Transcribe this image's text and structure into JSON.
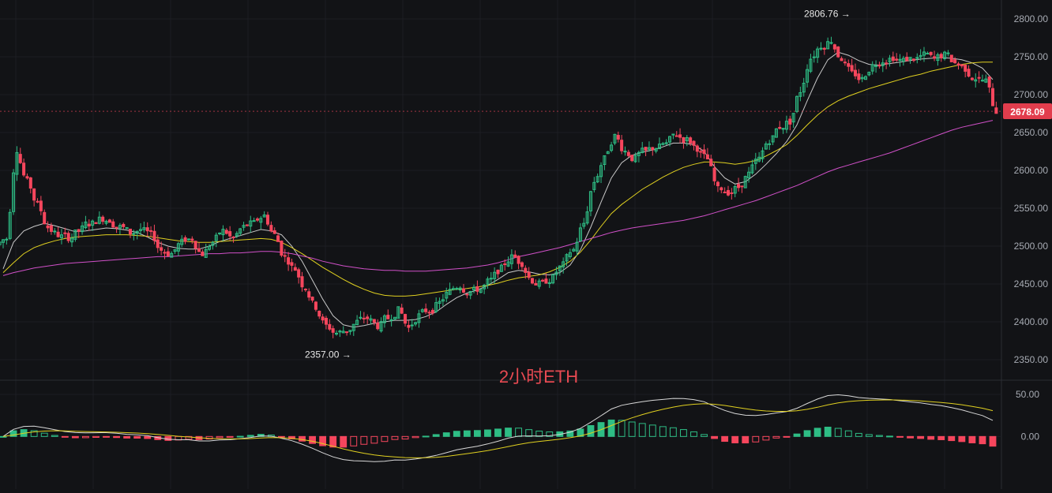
{
  "chart_data": [
    {
      "type": "candlestick",
      "title": "",
      "ylim": [
        2325,
        2825
      ],
      "y_ticks": [
        "2800.00",
        "2750.00",
        "2700.00",
        "2650.00",
        "2600.00",
        "2550.00",
        "2500.00",
        "2450.00",
        "2400.00",
        "2350.00"
      ],
      "last_price_label": "2678.09",
      "watermark": "2小时ETH",
      "annotations": [
        {
          "text": "2806.76 →",
          "value": 2806.76
        },
        {
          "text": "2357.00 →",
          "value": 2357.0
        }
      ],
      "close_series": [
        2510,
        2628,
        2585,
        2555,
        2525,
        2515,
        2512,
        2520,
        2530,
        2535,
        2535,
        2525,
        2518,
        2522,
        2515,
        2495,
        2490,
        2505,
        2510,
        2490,
        2505,
        2520,
        2510,
        2525,
        2530,
        2540,
        2515,
        2485,
        2470,
        2445,
        2420,
        2395,
        2385,
        2388,
        2400,
        2405,
        2395,
        2405,
        2415,
        2392,
        2408,
        2415,
        2425,
        2440,
        2448,
        2440,
        2443,
        2455,
        2470,
        2485,
        2478,
        2455,
        2450,
        2458,
        2475,
        2495,
        2530,
        2585,
        2615,
        2645,
        2625,
        2615,
        2625,
        2630,
        2635,
        2648,
        2640,
        2630,
        2615,
        2575,
        2572,
        2578,
        2595,
        2615,
        2640,
        2658,
        2665,
        2705,
        2748,
        2765,
        2772,
        2748,
        2728,
        2720,
        2738,
        2745,
        2750,
        2745,
        2748,
        2752,
        2747,
        2752,
        2742,
        2735,
        2722,
        2718,
        2678
      ],
      "ma_series": [
        {
          "color": "#c8c8c8",
          "values": [
            2470,
            2505,
            2520,
            2526,
            2530,
            2527,
            2523,
            2519,
            2520,
            2522,
            2524,
            2523,
            2521,
            2518,
            2512,
            2505,
            2500,
            2497,
            2496,
            2496,
            2500,
            2506,
            2510,
            2514,
            2518,
            2522,
            2520,
            2515,
            2500,
            2480,
            2455,
            2430,
            2408,
            2396,
            2393,
            2395,
            2398,
            2400,
            2402,
            2402,
            2403,
            2407,
            2413,
            2423,
            2432,
            2438,
            2442,
            2448,
            2456,
            2465,
            2468,
            2466,
            2463,
            2462,
            2465,
            2475,
            2495,
            2525,
            2558,
            2590,
            2610,
            2620,
            2624,
            2627,
            2631,
            2636,
            2636,
            2634,
            2625,
            2605,
            2590,
            2582,
            2585,
            2595,
            2608,
            2622,
            2638,
            2660,
            2692,
            2722,
            2746,
            2756,
            2752,
            2745,
            2740,
            2739,
            2741,
            2743,
            2745,
            2747,
            2748,
            2749,
            2748,
            2746,
            2742,
            2735,
            2720
          ]
        },
        {
          "color": "#e0d020",
          "values": [
            2465,
            2478,
            2490,
            2498,
            2503,
            2507,
            2510,
            2512,
            2513,
            2514,
            2515,
            2515,
            2515,
            2514,
            2513,
            2511,
            2509,
            2507,
            2506,
            2505,
            2505,
            2506,
            2507,
            2508,
            2509,
            2510,
            2509,
            2505,
            2498,
            2490,
            2481,
            2472,
            2464,
            2456,
            2449,
            2443,
            2438,
            2435,
            2434,
            2434,
            2435,
            2437,
            2439,
            2441,
            2443,
            2444,
            2446,
            2448,
            2451,
            2455,
            2458,
            2460,
            2462,
            2466,
            2472,
            2480,
            2492,
            2508,
            2526,
            2543,
            2555,
            2565,
            2575,
            2583,
            2591,
            2598,
            2604,
            2608,
            2611,
            2611,
            2610,
            2608,
            2610,
            2613,
            2619,
            2626,
            2634,
            2646,
            2660,
            2673,
            2684,
            2692,
            2698,
            2703,
            2708,
            2712,
            2716,
            2720,
            2724,
            2727,
            2731,
            2734,
            2737,
            2740,
            2742,
            2743,
            2743
          ]
        },
        {
          "color": "#d050c8",
          "values": [
            2461,
            2465,
            2468,
            2471,
            2473,
            2475,
            2477,
            2478,
            2479,
            2480,
            2481,
            2482,
            2483,
            2484,
            2485,
            2486,
            2486,
            2487,
            2488,
            2489,
            2490,
            2490,
            2491,
            2491,
            2492,
            2493,
            2493,
            2492,
            2490,
            2487,
            2484,
            2480,
            2477,
            2474,
            2472,
            2470,
            2469,
            2468,
            2468,
            2467,
            2467,
            2467,
            2468,
            2469,
            2470,
            2471,
            2473,
            2475,
            2478,
            2482,
            2486,
            2489,
            2492,
            2495,
            2498,
            2502,
            2506,
            2510,
            2514,
            2518,
            2521,
            2524,
            2526,
            2528,
            2530,
            2532,
            2534,
            2537,
            2540,
            2544,
            2548,
            2552,
            2556,
            2560,
            2565,
            2570,
            2575,
            2580,
            2586,
            2592,
            2598,
            2603,
            2607,
            2611,
            2615,
            2619,
            2623,
            2628,
            2633,
            2638,
            2643,
            2648,
            2653,
            2657,
            2660,
            2663,
            2666
          ]
        }
      ]
    },
    {
      "type": "macd",
      "ylim": [
        -55,
        65
      ],
      "y_ticks": [
        "50.00",
        "0.00"
      ],
      "colors": {
        "up": "#2ebd85",
        "down": "#f6465d",
        "dif": "#d8d8d8",
        "dea": "#e0d020"
      }
    }
  ]
}
